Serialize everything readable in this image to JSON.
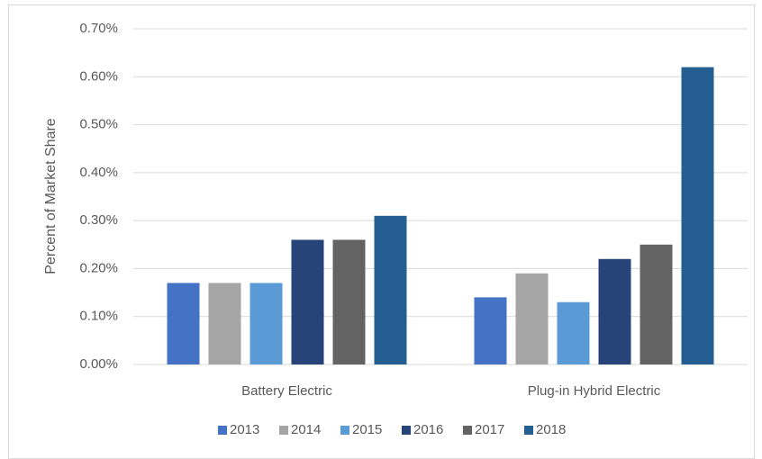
{
  "chart_data": {
    "type": "bar",
    "y_label": "Percent of Market Share",
    "categories": [
      "Battery Electric",
      "Plug-in Hybrid Electric"
    ],
    "series": [
      {
        "name": "2013",
        "color": "#4472c4",
        "values": [
          0.17,
          0.14
        ]
      },
      {
        "name": "2014",
        "color": "#a5a5a5",
        "values": [
          0.17,
          0.19
        ]
      },
      {
        "name": "2015",
        "color": "#5b9bd5",
        "values": [
          0.17,
          0.13
        ]
      },
      {
        "name": "2016",
        "color": "#264478",
        "values": [
          0.26,
          0.22
        ]
      },
      {
        "name": "2017",
        "color": "#636363",
        "values": [
          0.26,
          0.25
        ]
      },
      {
        "name": "2018",
        "color": "#255e91",
        "values": [
          0.31,
          0.62
        ]
      }
    ],
    "ylim": [
      0,
      0.7
    ],
    "yticks": [
      {
        "value": 0,
        "label": "0.00%"
      },
      {
        "value": 0.1,
        "label": "0.10%"
      },
      {
        "value": 0.2,
        "label": "0.20%"
      },
      {
        "value": 0.3,
        "label": "0.30%"
      },
      {
        "value": 0.4,
        "label": "0.40%"
      },
      {
        "value": 0.5,
        "label": "0.50%"
      },
      {
        "value": 0.6,
        "label": "0.60%"
      },
      {
        "value": 0.7,
        "label": "0.70%"
      }
    ],
    "grid": true,
    "legend": "bottom"
  }
}
